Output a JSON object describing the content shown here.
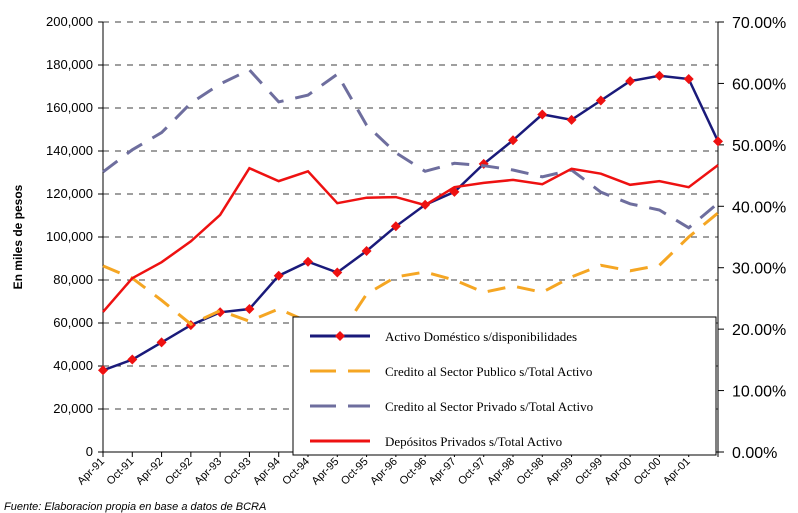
{
  "chart_data": {
    "type": "line",
    "y_label": "En miles de pesos",
    "source": "Fuente: Elaboracion propia en base a datos de BCRA",
    "categories": [
      "Apr-91",
      "Oct-91",
      "Apr-92",
      "Oct-92",
      "Apr-93",
      "Oct-93",
      "Apr-94",
      "Oct-94",
      "Apr-95",
      "Oct-95",
      "Apr-96",
      "Oct-96",
      "Apr-97",
      "Oct-97",
      "Apr-98",
      "Oct-98",
      "Apr-99",
      "Oct-99",
      "Apr-00",
      "Oct-00",
      "Apr-01",
      null
    ],
    "ylim": [
      0,
      200000
    ],
    "yticks": [
      0,
      {
        "value": 20000,
        "label": "20,000"
      },
      {
        "value": 40000,
        "label": "40,000"
      },
      {
        "value": 60000,
        "label": "60,000"
      },
      {
        "value": 80000,
        "label": "80,000"
      },
      {
        "value": 100000,
        "label": "100,000"
      },
      {
        "value": 120000,
        "label": "120,000"
      },
      {
        "value": 140000,
        "label": "140,000"
      },
      {
        "value": 160000,
        "label": "160,000"
      },
      {
        "value": 180000,
        "label": "180,000"
      },
      {
        "value": 200000,
        "label": "200,000"
      }
    ],
    "y2lim": [
      0,
      70
    ],
    "y2ticks": [
      {
        "value": 0,
        "label": "0.00%"
      },
      {
        "value": 10,
        "label": "10.00%"
      },
      {
        "value": 20,
        "label": "20.00%"
      },
      {
        "value": 30,
        "label": "30.00%"
      },
      {
        "value": 40,
        "label": "40.00%"
      },
      {
        "value": 50,
        "label": "50.00%"
      },
      {
        "value": 60,
        "label": "60.00%"
      },
      {
        "value": 70,
        "label": "70.00%"
      }
    ],
    "grid": true,
    "series": [
      {
        "name": "Activo Doméstico s/disponibilidades",
        "color": "#1a1a7a",
        "style": "solid",
        "marker": "diamond",
        "marker_color": "#ee1111",
        "values": [
          38000,
          43000,
          51000,
          59000,
          65000,
          66500,
          82000,
          88500,
          83500,
          93500,
          105000,
          115000,
          121000,
          134000,
          145000,
          157000,
          154500,
          163500,
          172500,
          175000,
          173500,
          144500
        ]
      },
      {
        "name": "Credito al Sector Publico s/Total Activo",
        "color": "#f5a623",
        "style": "dashed",
        "axis": "y2",
        "values": [
          30.3,
          28.3,
          24.7,
          20.8,
          23.0,
          21.3,
          23.3,
          21.2,
          18.5,
          25.7,
          28.5,
          29.3,
          28.0,
          26.0,
          27.0,
          26.0,
          28.5,
          30.4,
          29.5,
          30.4,
          35.0,
          38.9
        ]
      },
      {
        "name": "Credito al Sector Privado s/Total Activo",
        "color": "#6e6e9e",
        "style": "dashed",
        "axis": "y2",
        "values": [
          45.6,
          49.2,
          52.0,
          56.8,
          59.9,
          62.2,
          57.0,
          58.1,
          61.5,
          53.2,
          48.7,
          45.7,
          47.0,
          46.6,
          45.9,
          44.8,
          45.9,
          42.3,
          40.4,
          39.4,
          36.5,
          40.5
        ]
      },
      {
        "name": "Depósitos Privados s/Total Activo",
        "color": "#ee1111",
        "style": "solid",
        "axis": "y2",
        "values": [
          22.8,
          28.3,
          30.9,
          34.3,
          38.6,
          46.2,
          44.1,
          45.7,
          40.5,
          41.4,
          41.5,
          40.2,
          43.1,
          43.8,
          44.3,
          43.6,
          46.1,
          45.3,
          43.5,
          44.1,
          43.1,
          46.7
        ]
      }
    ]
  }
}
